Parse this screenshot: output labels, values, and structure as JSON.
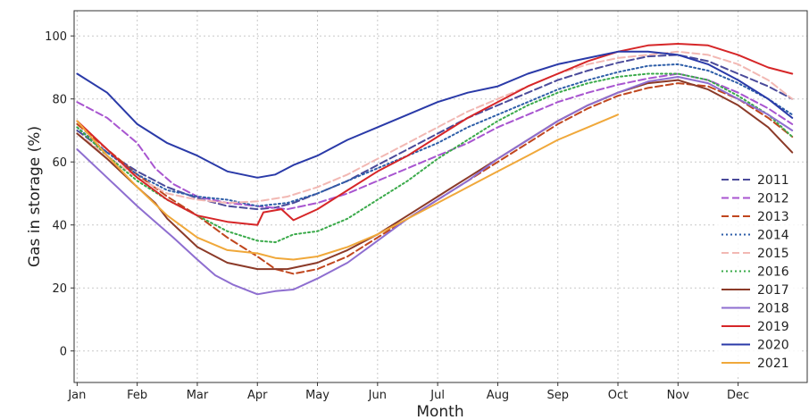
{
  "chart_data": {
    "type": "line",
    "xlabel": "Month",
    "ylabel": "Gas in storage (%)",
    "x_ticks": [
      "Jan",
      "Feb",
      "Mar",
      "Apr",
      "May",
      "Jun",
      "Jul",
      "Aug",
      "Sep",
      "Oct",
      "Nov",
      "Dec"
    ],
    "x_range": [
      -0.05,
      12.15
    ],
    "y_ticks": [
      0,
      20,
      40,
      60,
      80,
      100
    ],
    "ylim": [
      -10,
      108
    ],
    "grid": true,
    "legend_position": "right",
    "series": [
      {
        "name": "2011",
        "color": "#4a4a9a",
        "dash": "dashed",
        "points": [
          [
            0,
            70
          ],
          [
            0.5,
            63
          ],
          [
            1,
            57
          ],
          [
            1.5,
            52
          ],
          [
            2,
            48.5
          ],
          [
            2.5,
            46
          ],
          [
            3,
            45
          ],
          [
            3.3,
            45.5
          ],
          [
            3.6,
            47
          ],
          [
            4,
            50
          ],
          [
            4.5,
            54
          ],
          [
            5,
            59
          ],
          [
            5.5,
            64
          ],
          [
            6,
            69
          ],
          [
            6.5,
            74
          ],
          [
            7,
            78
          ],
          [
            7.5,
            82
          ],
          [
            8,
            86
          ],
          [
            8.5,
            89
          ],
          [
            9,
            91.5
          ],
          [
            9.5,
            93.5
          ],
          [
            10,
            94
          ],
          [
            10.5,
            92
          ],
          [
            11,
            88
          ],
          [
            11.5,
            84
          ],
          [
            11.9,
            80
          ]
        ]
      },
      {
        "name": "2012",
        "color": "#a855d0",
        "dash": "dashed",
        "points": [
          [
            0,
            79
          ],
          [
            0.5,
            74
          ],
          [
            1,
            66
          ],
          [
            1.3,
            58
          ],
          [
            1.6,
            53
          ],
          [
            2,
            49
          ],
          [
            2.5,
            47
          ],
          [
            3,
            46
          ],
          [
            3.5,
            45
          ],
          [
            4,
            47
          ],
          [
            4.5,
            50
          ],
          [
            5,
            54
          ],
          [
            5.5,
            58
          ],
          [
            6,
            62
          ],
          [
            6.5,
            66
          ],
          [
            7,
            71
          ],
          [
            7.5,
            75
          ],
          [
            8,
            79
          ],
          [
            8.5,
            82
          ],
          [
            9,
            84.5
          ],
          [
            9.5,
            86.5
          ],
          [
            10,
            88
          ],
          [
            10.5,
            86
          ],
          [
            11,
            82
          ],
          [
            11.5,
            77
          ],
          [
            11.9,
            72
          ]
        ]
      },
      {
        "name": "2013",
        "color": "#c0461e",
        "dash": "dashed",
        "points": [
          [
            0,
            72
          ],
          [
            0.5,
            64
          ],
          [
            1,
            56
          ],
          [
            1.5,
            49
          ],
          [
            2,
            43
          ],
          [
            2.5,
            36
          ],
          [
            3,
            30
          ],
          [
            3.3,
            26
          ],
          [
            3.6,
            24.5
          ],
          [
            4,
            26
          ],
          [
            4.5,
            30
          ],
          [
            5,
            36
          ],
          [
            5.5,
            42
          ],
          [
            6,
            48
          ],
          [
            6.5,
            54
          ],
          [
            7,
            60
          ],
          [
            7.5,
            66
          ],
          [
            8,
            72
          ],
          [
            8.5,
            77
          ],
          [
            9,
            81
          ],
          [
            9.5,
            83.5
          ],
          [
            10,
            85
          ],
          [
            10.5,
            84
          ],
          [
            11,
            80
          ],
          [
            11.5,
            74
          ],
          [
            11.9,
            68
          ]
        ]
      },
      {
        "name": "2014",
        "color": "#2e5ea8",
        "dash": "dotted",
        "points": [
          [
            0,
            71
          ],
          [
            0.5,
            63
          ],
          [
            1,
            56
          ],
          [
            1.5,
            51
          ],
          [
            2,
            49
          ],
          [
            2.5,
            48
          ],
          [
            3,
            46
          ],
          [
            3.5,
            47
          ],
          [
            4,
            50
          ],
          [
            4.5,
            54
          ],
          [
            5,
            58
          ],
          [
            5.5,
            62
          ],
          [
            6,
            66
          ],
          [
            6.5,
            71
          ],
          [
            7,
            75
          ],
          [
            7.5,
            79
          ],
          [
            8,
            83
          ],
          [
            8.5,
            86
          ],
          [
            9,
            88.5
          ],
          [
            9.5,
            90.5
          ],
          [
            10,
            91
          ],
          [
            10.5,
            89
          ],
          [
            11,
            85
          ],
          [
            11.5,
            80
          ],
          [
            11.9,
            75
          ]
        ]
      },
      {
        "name": "2015",
        "color": "#f2b8b3",
        "dash": "dashed",
        "points": [
          [
            0,
            69
          ],
          [
            0.5,
            62
          ],
          [
            1,
            55
          ],
          [
            1.5,
            50
          ],
          [
            2,
            48
          ],
          [
            2.5,
            47
          ],
          [
            3,
            47.5
          ],
          [
            3.5,
            49
          ],
          [
            4,
            52
          ],
          [
            4.5,
            56
          ],
          [
            5,
            61
          ],
          [
            5.5,
            66
          ],
          [
            6,
            71
          ],
          [
            6.5,
            76
          ],
          [
            7,
            80
          ],
          [
            7.5,
            84
          ],
          [
            8,
            88
          ],
          [
            8.5,
            91
          ],
          [
            9,
            93
          ],
          [
            9.5,
            94
          ],
          [
            10,
            95
          ],
          [
            10.5,
            94
          ],
          [
            11,
            91
          ],
          [
            11.5,
            86
          ],
          [
            11.9,
            80
          ]
        ]
      },
      {
        "name": "2016",
        "color": "#3aaa4a",
        "dash": "dotted",
        "points": [
          [
            0,
            71
          ],
          [
            0.5,
            62
          ],
          [
            1,
            54
          ],
          [
            1.5,
            48
          ],
          [
            2,
            43
          ],
          [
            2.5,
            38
          ],
          [
            3,
            35
          ],
          [
            3.3,
            34.5
          ],
          [
            3.6,
            37
          ],
          [
            4,
            38
          ],
          [
            4.5,
            42
          ],
          [
            5,
            48
          ],
          [
            5.5,
            54
          ],
          [
            6,
            61
          ],
          [
            6.5,
            67
          ],
          [
            7,
            73
          ],
          [
            7.5,
            78
          ],
          [
            8,
            82
          ],
          [
            8.5,
            85
          ],
          [
            9,
            87
          ],
          [
            9.5,
            88
          ],
          [
            10,
            88
          ],
          [
            10.5,
            86
          ],
          [
            11,
            81
          ],
          [
            11.5,
            75
          ],
          [
            11.9,
            68
          ]
        ]
      },
      {
        "name": "2017",
        "color": "#8b3a28",
        "dash": "solid",
        "points": [
          [
            0,
            69
          ],
          [
            0.5,
            61
          ],
          [
            1,
            52
          ],
          [
            1.3,
            47
          ],
          [
            1.5,
            42
          ],
          [
            2,
            33
          ],
          [
            2.5,
            28
          ],
          [
            3,
            26
          ],
          [
            3.5,
            26
          ],
          [
            4,
            28
          ],
          [
            4.5,
            32
          ],
          [
            5,
            37
          ],
          [
            5.5,
            43
          ],
          [
            6,
            49
          ],
          [
            6.5,
            55
          ],
          [
            7,
            61
          ],
          [
            7.5,
            67
          ],
          [
            8,
            73
          ],
          [
            8.5,
            78
          ],
          [
            9,
            82
          ],
          [
            9.5,
            85
          ],
          [
            10,
            86
          ],
          [
            10.5,
            83
          ],
          [
            11,
            78
          ],
          [
            11.5,
            71
          ],
          [
            11.9,
            63
          ]
        ]
      },
      {
        "name": "2018",
        "color": "#8e6ed0",
        "dash": "solid",
        "points": [
          [
            0,
            64
          ],
          [
            0.5,
            55
          ],
          [
            1,
            46
          ],
          [
            1.3,
            41
          ],
          [
            1.6,
            36
          ],
          [
            2,
            29
          ],
          [
            2.3,
            24
          ],
          [
            2.6,
            21
          ],
          [
            3,
            18
          ],
          [
            3.3,
            19
          ],
          [
            3.6,
            19.5
          ],
          [
            4,
            23
          ],
          [
            4.5,
            28
          ],
          [
            5,
            35
          ],
          [
            5.5,
            42
          ],
          [
            6,
            48
          ],
          [
            6.5,
            54
          ],
          [
            7,
            61
          ],
          [
            7.5,
            67
          ],
          [
            8,
            73
          ],
          [
            8.5,
            78
          ],
          [
            9,
            82
          ],
          [
            9.5,
            85.5
          ],
          [
            10,
            87
          ],
          [
            10.5,
            85
          ],
          [
            11,
            80
          ],
          [
            11.5,
            75
          ],
          [
            11.9,
            70
          ]
        ]
      },
      {
        "name": "2019",
        "color": "#d62628",
        "dash": "solid",
        "points": [
          [
            0,
            73
          ],
          [
            0.5,
            64
          ],
          [
            1,
            55
          ],
          [
            1.5,
            48
          ],
          [
            2,
            43
          ],
          [
            2.5,
            41
          ],
          [
            3,
            40
          ],
          [
            3.1,
            44
          ],
          [
            3.4,
            45
          ],
          [
            3.6,
            41.5
          ],
          [
            4,
            45
          ],
          [
            4.5,
            51
          ],
          [
            5,
            57
          ],
          [
            5.5,
            62
          ],
          [
            6,
            68
          ],
          [
            6.5,
            74
          ],
          [
            7,
            79
          ],
          [
            7.5,
            84
          ],
          [
            8,
            88
          ],
          [
            8.5,
            92
          ],
          [
            9,
            95
          ],
          [
            9.5,
            97
          ],
          [
            10,
            97.5
          ],
          [
            10.5,
            97
          ],
          [
            11,
            94
          ],
          [
            11.5,
            90
          ],
          [
            11.9,
            88
          ]
        ]
      },
      {
        "name": "2020",
        "color": "#2a3aa8",
        "dash": "solid",
        "points": [
          [
            0,
            88
          ],
          [
            0.5,
            82
          ],
          [
            1,
            72
          ],
          [
            1.5,
            66
          ],
          [
            2,
            62
          ],
          [
            2.5,
            57
          ],
          [
            3,
            55
          ],
          [
            3.3,
            56
          ],
          [
            3.6,
            59
          ],
          [
            4,
            62
          ],
          [
            4.5,
            67
          ],
          [
            5,
            71
          ],
          [
            5.5,
            75
          ],
          [
            6,
            79
          ],
          [
            6.5,
            82
          ],
          [
            7,
            84
          ],
          [
            7.5,
            88
          ],
          [
            8,
            91
          ],
          [
            8.5,
            93
          ],
          [
            9,
            95
          ],
          [
            9.5,
            95
          ],
          [
            10,
            94
          ],
          [
            10.5,
            91
          ],
          [
            11,
            86
          ],
          [
            11.5,
            80
          ],
          [
            11.9,
            74
          ]
        ]
      },
      {
        "name": "2021",
        "color": "#f0a83a",
        "dash": "solid",
        "points": [
          [
            0,
            73
          ],
          [
            0.5,
            62
          ],
          [
            1,
            52
          ],
          [
            1.5,
            43
          ],
          [
            2,
            36
          ],
          [
            2.5,
            32
          ],
          [
            3,
            31
          ],
          [
            3.3,
            29.5
          ],
          [
            3.6,
            29
          ],
          [
            4,
            30
          ],
          [
            4.5,
            33
          ],
          [
            5,
            37
          ],
          [
            5.5,
            42
          ],
          [
            6,
            47
          ],
          [
            6.5,
            52
          ],
          [
            7,
            57
          ],
          [
            7.5,
            62
          ],
          [
            8,
            67
          ],
          [
            8.5,
            71
          ],
          [
            9,
            75
          ]
        ]
      }
    ]
  }
}
